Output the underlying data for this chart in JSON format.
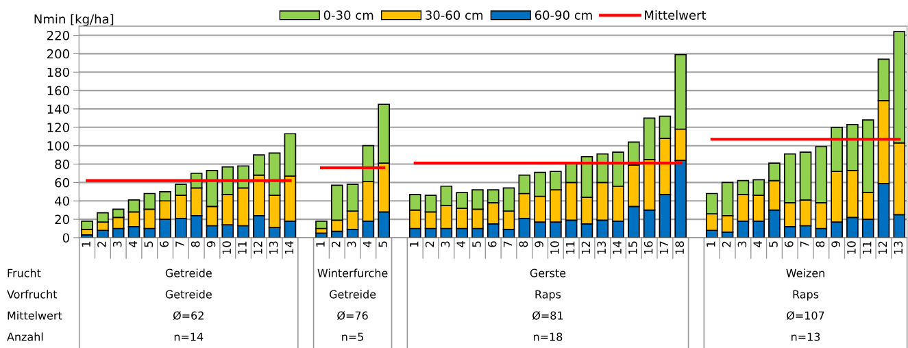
{
  "chart_data": {
    "type": "bar",
    "stacked": true,
    "ylabel": "Nmin [kg/ha]",
    "categories": [
      "1",
      "2",
      "3",
      "4",
      "5",
      "6",
      "7",
      "8",
      "9",
      "10",
      "11",
      "12",
      "13",
      "14",
      null,
      "1",
      "2",
      "3",
      "4",
      "5",
      null,
      "1",
      "2",
      "3",
      "4",
      "5",
      "6",
      "7",
      "8",
      "9",
      "10",
      "11",
      "12",
      "13",
      "14",
      "15",
      "16",
      "17",
      "18",
      null,
      "1",
      "2",
      "3",
      "4",
      "5",
      "6",
      "7",
      "8",
      "9",
      "10",
      "11",
      "12",
      "13"
    ],
    "series": [
      {
        "name": "60-90 cm",
        "color": "#0070c0",
        "values": [
          3,
          8,
          10,
          12,
          10,
          20,
          21,
          24,
          13,
          14,
          13,
          24,
          11,
          18,
          null,
          5,
          7,
          9,
          18,
          28,
          null,
          10,
          10,
          10,
          10,
          10,
          15,
          9,
          21,
          17,
          17,
          19,
          15,
          19,
          18,
          34,
          30,
          47,
          84,
          null,
          8,
          6,
          18,
          18,
          30,
          12,
          13,
          10,
          17,
          22,
          20,
          59,
          25
        ]
      },
      {
        "name": "30-60 cm",
        "color": "#ffc000",
        "values": [
          6,
          9,
          12,
          16,
          21,
          20,
          25,
          30,
          21,
          33,
          41,
          44,
          35,
          49,
          null,
          5,
          12,
          20,
          43,
          53,
          null,
          20,
          18,
          25,
          22,
          21,
          23,
          20,
          27,
          28,
          35,
          41,
          29,
          41,
          38,
          45,
          55,
          61,
          34,
          null,
          18,
          18,
          29,
          28,
          32,
          26,
          28,
          28,
          55,
          51,
          29,
          90,
          78
        ]
      },
      {
        "name": "0-30 cm",
        "color": "#92d050",
        "values": [
          9,
          10,
          9,
          13,
          17,
          10,
          12,
          16,
          39,
          30,
          24,
          22,
          46,
          46,
          null,
          8,
          38,
          29,
          39,
          64,
          null,
          17,
          18,
          21,
          17,
          21,
          14,
          25,
          20,
          26,
          20,
          21,
          44,
          31,
          37,
          25,
          45,
          24,
          81,
          null,
          22,
          36,
          15,
          17,
          19,
          53,
          52,
          61,
          48,
          50,
          79,
          45,
          121
        ]
      },
      {
        "name": "Mittelwert",
        "type": "line",
        "color": "#ff0000",
        "values": [
          62,
          62,
          62,
          62,
          62,
          62,
          62,
          62,
          62,
          62,
          62,
          62,
          62,
          62,
          null,
          76,
          76,
          76,
          76,
          76,
          null,
          81,
          81,
          81,
          81,
          81,
          81,
          81,
          81,
          81,
          81,
          81,
          81,
          81,
          81,
          81,
          81,
          81,
          81,
          null,
          107,
          107,
          107,
          107,
          107,
          107,
          107,
          107,
          107,
          107,
          107,
          107,
          107
        ]
      }
    ],
    "ylim": [
      0,
      230
    ],
    "yticks": [
      0,
      20,
      40,
      60,
      80,
      100,
      120,
      140,
      160,
      180,
      200,
      220
    ],
    "grid": "y",
    "legend": "top",
    "annotations": [
      "Frucht",
      "Vorfrucht",
      "Mittelwert",
      "Anzahl",
      "Getreide",
      "Winterfurche",
      "Gerste",
      "Weizen",
      "Getreide",
      "Getreide",
      "Raps",
      "Raps",
      "Ø=62",
      "Ø=76",
      "Ø=81",
      "Ø=107",
      "n=14",
      "n=5",
      "n=18",
      "n=13"
    ]
  }
}
